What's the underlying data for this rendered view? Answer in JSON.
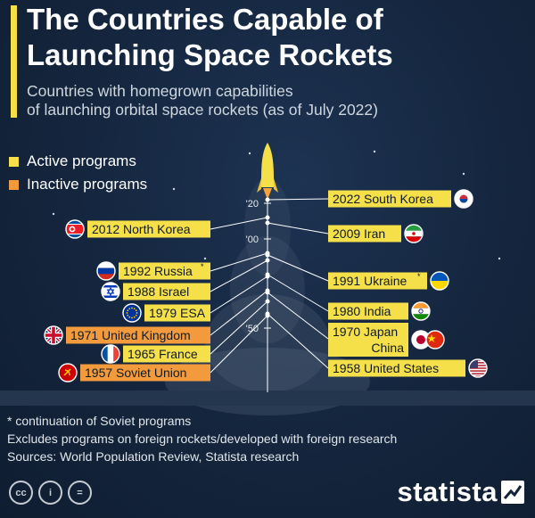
{
  "header": {
    "title_line1": "The Countries Capable of",
    "title_line2": "Launching Space Rockets",
    "subtitle_line1": "Countries with homegrown capabilities",
    "subtitle_line2": "of launching orbital space rockets (as of July 2022)"
  },
  "legend": {
    "active": "Active programs",
    "inactive": "Inactive programs"
  },
  "colors": {
    "active": "#f5e04a",
    "inactive": "#f29a3c",
    "background": "#13233a",
    "axis": "#ffffff"
  },
  "chart_data": {
    "type": "timeline",
    "axis": {
      "ticks": [
        "'20",
        "'00",
        "'50"
      ],
      "direction": "newest-top"
    },
    "entries": [
      {
        "year": 2022,
        "label": "2022 South Korea",
        "status": "active",
        "side": "right",
        "flag": "south-korea-flag"
      },
      {
        "year": 2012,
        "label": "2012 North Korea",
        "status": "active",
        "side": "left",
        "flag": "north-korea-flag"
      },
      {
        "year": 2009,
        "label": "2009 Iran",
        "status": "active",
        "side": "right",
        "flag": "iran-flag"
      },
      {
        "year": 1992,
        "label": "1992 Russia",
        "note": "*",
        "status": "active",
        "side": "left",
        "flag": "russia-flag"
      },
      {
        "year": 1991,
        "label": "1991 Ukraine",
        "note": "*",
        "status": "active",
        "side": "right",
        "flag": "ukraine-flag"
      },
      {
        "year": 1988,
        "label": "1988 Israel",
        "status": "active",
        "side": "left",
        "flag": "israel-flag"
      },
      {
        "year": 1980,
        "label": "1980 India",
        "status": "active",
        "side": "right",
        "flag": "india-flag"
      },
      {
        "year": 1979,
        "label": "1979 ESA",
        "status": "active",
        "side": "left",
        "flag": "eu-flag"
      },
      {
        "year": 1971,
        "label": "1971 United Kingdom",
        "status": "inactive",
        "side": "left",
        "flag": "uk-flag"
      },
      {
        "year": 1970,
        "label": "1970 Japan",
        "status": "active",
        "side": "right",
        "flag": "japan-flag"
      },
      {
        "year": 1970,
        "label": "China",
        "status": "active",
        "side": "right",
        "flag": "china-flag"
      },
      {
        "year": 1965,
        "label": "1965 France",
        "status": "active",
        "side": "left",
        "flag": "france-flag"
      },
      {
        "year": 1958,
        "label": "1958 United States",
        "status": "active",
        "side": "right",
        "flag": "usa-flag"
      },
      {
        "year": 1957,
        "label": "1957 Soviet Union",
        "status": "inactive",
        "side": "left",
        "flag": "soviet-flag"
      }
    ]
  },
  "footer": {
    "note1": "* continuation of Soviet programs",
    "note2": "Excludes programs on foreign rockets/developed with foreign research",
    "sources": "Sources: World Population Review, Statista research",
    "brand": "statista",
    "cc_icons": [
      "cc-icon",
      "attribution-icon",
      "no-derivatives-icon"
    ],
    "cc_symbols": [
      "cc",
      "i",
      "="
    ]
  }
}
